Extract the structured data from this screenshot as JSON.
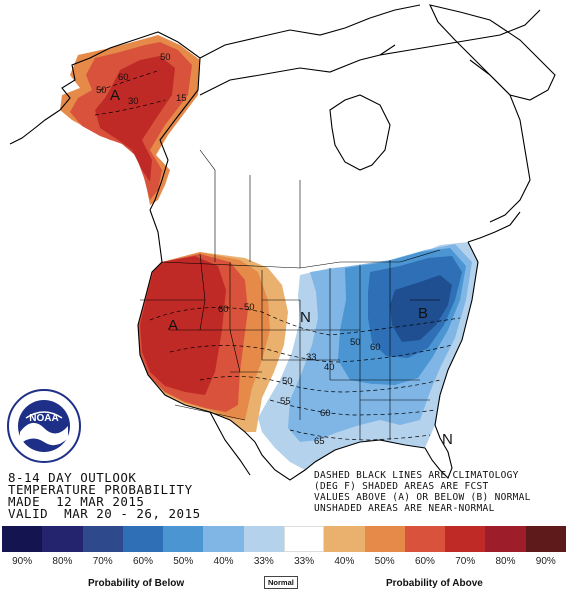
{
  "stamp": {
    "line1": "8-14 DAY OUTLOOK",
    "line2": "TEMPERATURE PROBABILITY",
    "line3": "MADE  12 MAR 2015",
    "line4": "VALID  MAR 20 - 26, 2015"
  },
  "note": {
    "line1": "DASHED BLACK LINES ARE CLIMATOLOGY",
    "line2": "(DEG F) SHADED AREAS ARE FCST",
    "line3": "VALUES ABOVE (A) OR BELOW (B) NORMAL",
    "line4": "UNSHADED AREAS ARE NEAR-NORMAL"
  },
  "logo": {
    "text": "NOAA",
    "icon": "noaa-logo-icon"
  },
  "map_labels": {
    "alaska_category": "A",
    "west_category": "A",
    "east_category": "B",
    "central_category": "N",
    "florida_category": "N",
    "contours": {
      "ak_50": "50",
      "ak_60": "60",
      "ak_15": "15",
      "ak_50b": "50",
      "ak_30": "30",
      "west_60": "60",
      "west_50": "50",
      "east_50": "50",
      "east_60": "60",
      "east_33": "33",
      "east_40": "40",
      "east_50b": "50",
      "east_55": "55",
      "east_60b": "60",
      "east_65": "65"
    }
  },
  "legend": {
    "below_title": "Probability of Below",
    "normal_title": "Normal",
    "above_title": "Probability of Above",
    "ticks": [
      "90%",
      "80%",
      "70%",
      "60%",
      "50%",
      "40%",
      "33%",
      "33%",
      "40%",
      "50%",
      "60%",
      "70%",
      "80%",
      "90%"
    ],
    "colors": [
      "#141450",
      "#23236e",
      "#2e4a8c",
      "#2f6fb5",
      "#4b95d3",
      "#7fb6e6",
      "#b4d2ec",
      "#ffffff",
      "#eab06e",
      "#e68a4a",
      "#d9533c",
      "#c02a26",
      "#9d1d2a",
      "#5e1a1a"
    ]
  },
  "colors": {
    "above_33": "#eab06e",
    "above_40": "#e68a4a",
    "above_50": "#d9533c",
    "above_60": "#c02a26",
    "below_33": "#b4d2ec",
    "below_40": "#7fb6e6",
    "below_50": "#4b95d3",
    "below_60": "#2f6fb5",
    "below_70": "#1f4f90"
  }
}
